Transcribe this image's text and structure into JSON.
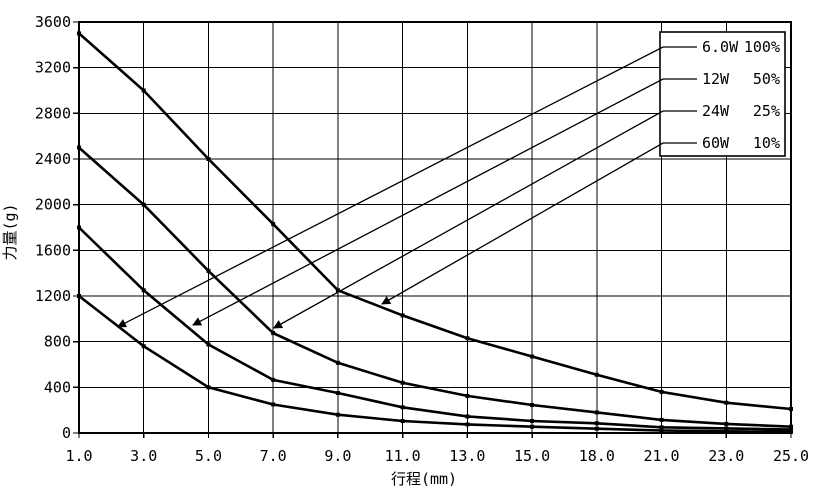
{
  "chart_data": {
    "type": "line",
    "title": "",
    "xlabel": "行程(mm)",
    "ylabel": "力量(g)",
    "categories": [
      "1.0",
      "3.0",
      "5.0",
      "7.0",
      "9.0",
      "11.0",
      "13.0",
      "15.0",
      "18.0",
      "21.0",
      "23.0",
      "25.0"
    ],
    "x_values": [
      1.0,
      3.0,
      5.0,
      7.0,
      9.0,
      11.0,
      13.0,
      15.0,
      18.0,
      21.0,
      23.0,
      25.0
    ],
    "y_ticks": [
      0,
      400,
      800,
      1200,
      1600,
      2000,
      2400,
      2800,
      3200,
      3600
    ],
    "ylim": [
      0,
      3600
    ],
    "grid": true,
    "legend_position": "top-right",
    "series": [
      {
        "name": "60W 10%",
        "values": [
          3500,
          3000,
          2400,
          1830,
          1250,
          1030,
          830,
          670,
          510,
          360,
          265,
          210
        ]
      },
      {
        "name": "24W 25%",
        "values": [
          2500,
          2000,
          1420,
          875,
          615,
          440,
          325,
          245,
          180,
          115,
          80,
          55
        ]
      },
      {
        "name": "12W 50%",
        "values": [
          1800,
          1250,
          775,
          465,
          350,
          225,
          145,
          105,
          85,
          50,
          40,
          30
        ]
      },
      {
        "name": "6.0W 100%",
        "values": [
          1200,
          760,
          400,
          250,
          160,
          105,
          75,
          55,
          38,
          22,
          15,
          10
        ]
      }
    ],
    "legend": [
      {
        "power": "6.0W",
        "duty": "100%",
        "target": {
          "xi": 0.6,
          "y": 930
        }
      },
      {
        "power": "12W",
        "duty": "50%",
        "target": {
          "xi": 1.76,
          "y": 945
        }
      },
      {
        "power": "24W",
        "duty": "25%",
        "target": {
          "xi": 3.01,
          "y": 920
        }
      },
      {
        "power": "60W",
        "duty": "10%",
        "target": {
          "xi": 4.68,
          "y": 1130
        }
      }
    ],
    "colors": {
      "line": "#000000",
      "grid": "#000000",
      "background": "#ffffff"
    }
  }
}
